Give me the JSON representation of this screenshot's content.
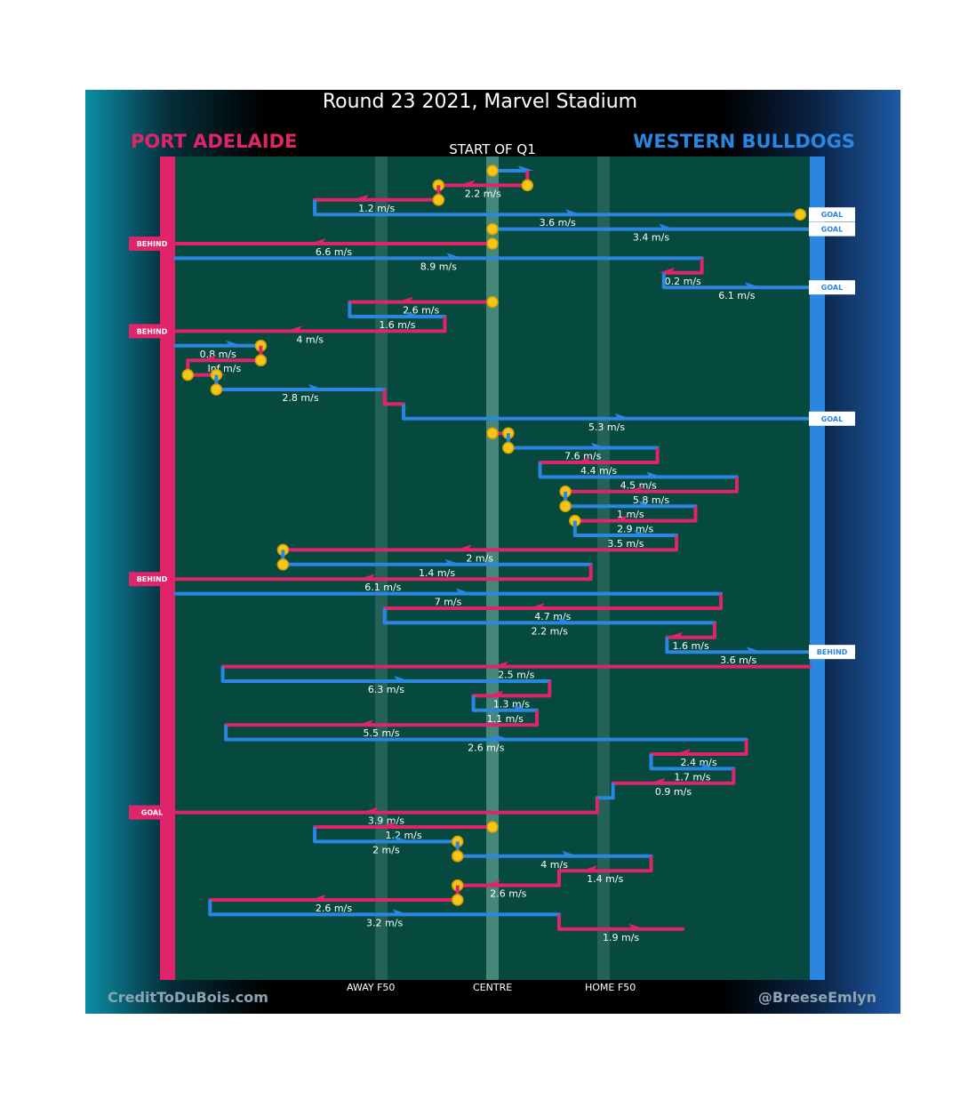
{
  "title": "Round 23 2021, Marvel Stadium",
  "subtitle": "START OF Q1",
  "teams": {
    "left": {
      "name": "PORT ADELAIDE",
      "color": "#e0246a"
    },
    "right": {
      "name": "WESTERN BULLDOGS",
      "color": "#2a86e0"
    }
  },
  "axis_labels": {
    "away": "AWAY F50",
    "centre": "CENTRE",
    "home": "HOME F50"
  },
  "credits": {
    "left": "CreditToDuBois.com",
    "right": "@BreeseEmlyn"
  },
  "colors": {
    "field": "#05493f",
    "port": "#e0246a",
    "bulldogs": "#2a86e0",
    "contest_marker": "#f5c518"
  },
  "chart_data": {
    "type": "diagram",
    "x_scale": "field position (0 = Port Adelaide goal line, 0.5 = centre, 1 = Western Bulldogs goal line)",
    "markers": {
      "away_f50": 0.325,
      "centre": 0.5,
      "home_f50": 0.675
    },
    "chains": [
      {
        "team": "WB",
        "speed": "",
        "from": 0.5,
        "to": 0.555,
        "contest_from": true,
        "contest_to": false
      },
      {
        "team": "PA",
        "speed": "2.2 m/s",
        "from": 0.555,
        "to": 0.415,
        "contest_from": true,
        "contest_to": true
      },
      {
        "team": "PA",
        "speed": "1.2 m/s",
        "from": 0.415,
        "to": 0.22,
        "contest_from": true,
        "contest_to": false
      },
      {
        "team": "WB",
        "speed": "3.6 m/s",
        "from": 0.22,
        "to": 0.985,
        "contest_from": false,
        "contest_to": true,
        "outcome": "GOAL"
      },
      {
        "team": "WB",
        "speed": "3.4 m/s",
        "from": 0.5,
        "to": 1.0,
        "contest_from": true,
        "contest_to": false,
        "outcome": "GOAL"
      },
      {
        "team": "PA",
        "speed": "6.6 m/s",
        "from": 0.5,
        "to": 0.0,
        "contest_from": true,
        "contest_to": false,
        "outcome": "BEHIND"
      },
      {
        "team": "WB",
        "speed": "8.9 m/s",
        "from": 0.0,
        "to": 0.83,
        "contest_from": false,
        "contest_to": false
      },
      {
        "team": "PA",
        "speed": "0.2 m/s",
        "from": 0.83,
        "to": 0.77,
        "contest_from": false,
        "contest_to": false
      },
      {
        "team": "WB",
        "speed": "6.1 m/s",
        "from": 0.77,
        "to": 1.0,
        "contest_from": false,
        "contest_to": false,
        "outcome": "GOAL"
      },
      {
        "team": "PA",
        "speed": "2.6 m/s",
        "from": 0.5,
        "to": 0.275,
        "contest_from": true,
        "contest_to": false
      },
      {
        "team": "WB",
        "speed": "1.6 m/s",
        "from": 0.275,
        "to": 0.425,
        "contest_from": false,
        "contest_to": false
      },
      {
        "team": "PA",
        "speed": "4 m/s",
        "from": 0.425,
        "to": 0.0,
        "contest_from": false,
        "contest_to": false,
        "outcome": "BEHIND"
      },
      {
        "team": "WB",
        "speed": "0.8 m/s",
        "from": 0.0,
        "to": 0.135,
        "contest_from": false,
        "contest_to": true
      },
      {
        "team": "PA",
        "speed": "Inf m/s",
        "from": 0.135,
        "to": 0.02,
        "contest_from": true,
        "contest_to": false
      },
      {
        "team": "PA",
        "speed": "",
        "from": 0.02,
        "to": 0.065,
        "contest_from": true,
        "contest_to": true
      },
      {
        "team": "WB",
        "speed": "2.8 m/s",
        "from": 0.065,
        "to": 0.33,
        "contest_from": true,
        "contest_to": false
      },
      {
        "team": "PA",
        "speed": "",
        "from": 0.33,
        "to": 0.36,
        "contest_from": false,
        "contest_to": false
      },
      {
        "team": "WB",
        "speed": "5.3 m/s",
        "from": 0.36,
        "to": 1.0,
        "contest_from": false,
        "contest_to": false,
        "outcome": "GOAL"
      },
      {
        "team": "PA",
        "speed": "",
        "from": 0.5,
        "to": 0.525,
        "contest_from": true,
        "contest_to": true
      },
      {
        "team": "WB",
        "speed": "7.6 m/s",
        "from": 0.525,
        "to": 0.76,
        "contest_from": true,
        "contest_to": false
      },
      {
        "team": "PA",
        "speed": "4.4 m/s",
        "from": 0.76,
        "to": 0.575,
        "contest_from": false,
        "contest_to": false
      },
      {
        "team": "WB",
        "speed": "4.5 m/s",
        "from": 0.575,
        "to": 0.885,
        "contest_from": false,
        "contest_to": false
      },
      {
        "team": "PA",
        "speed": "5.8 m/s",
        "from": 0.885,
        "to": 0.615,
        "contest_from": false,
        "contest_to": true
      },
      {
        "team": "WB",
        "speed": "1 m/s",
        "from": 0.615,
        "to": 0.82,
        "contest_from": true,
        "contest_to": false
      },
      {
        "team": "PA",
        "speed": "2.9 m/s",
        "from": 0.82,
        "to": 0.63,
        "contest_from": false,
        "contest_to": true
      },
      {
        "team": "WB",
        "speed": "3.5 m/s",
        "from": 0.63,
        "to": 0.79,
        "contest_from": false,
        "contest_to": false
      },
      {
        "team": "PA",
        "speed": "2 m/s",
        "from": 0.79,
        "to": 0.17,
        "contest_from": false,
        "contest_to": true
      },
      {
        "team": "WB",
        "speed": "1.4 m/s",
        "from": 0.17,
        "to": 0.655,
        "contest_from": true,
        "contest_to": false
      },
      {
        "team": "PA",
        "speed": "6.1 m/s",
        "from": 0.655,
        "to": 0.0,
        "contest_from": false,
        "contest_to": false,
        "outcome": "BEHIND"
      },
      {
        "team": "WB",
        "speed": "7 m/s",
        "from": 0.0,
        "to": 0.86,
        "contest_from": false,
        "contest_to": false
      },
      {
        "team": "PA",
        "speed": "4.7 m/s",
        "from": 0.86,
        "to": 0.33,
        "contest_from": false,
        "contest_to": false
      },
      {
        "team": "WB",
        "speed": "2.2 m/s",
        "from": 0.33,
        "to": 0.85,
        "contest_from": false,
        "contest_to": false
      },
      {
        "team": "PA",
        "speed": "1.6 m/s",
        "from": 0.85,
        "to": 0.775,
        "contest_from": false,
        "contest_to": false
      },
      {
        "team": "WB",
        "speed": "3.6 m/s",
        "from": 0.775,
        "to": 1.0,
        "contest_from": false,
        "contest_to": false,
        "outcome": "BEHIND"
      },
      {
        "team": "PA",
        "speed": "2.5 m/s",
        "from": 1.0,
        "to": 0.075,
        "contest_from": false,
        "contest_to": false
      },
      {
        "team": "WB",
        "speed": "6.3 m/s",
        "from": 0.075,
        "to": 0.59,
        "contest_from": false,
        "contest_to": false
      },
      {
        "team": "PA",
        "speed": "1.3 m/s",
        "from": 0.59,
        "to": 0.47,
        "contest_from": false,
        "contest_to": false
      },
      {
        "team": "WB",
        "speed": "1.1 m/s",
        "from": 0.47,
        "to": 0.57,
        "contest_from": false,
        "contest_to": false
      },
      {
        "team": "PA",
        "speed": "5.5 m/s",
        "from": 0.57,
        "to": 0.08,
        "contest_from": false,
        "contest_to": false
      },
      {
        "team": "WB",
        "speed": "2.6 m/s",
        "from": 0.08,
        "to": 0.9,
        "contest_from": false,
        "contest_to": false
      },
      {
        "team": "PA",
        "speed": "2.4 m/s",
        "from": 0.9,
        "to": 0.75,
        "contest_from": false,
        "contest_to": false
      },
      {
        "team": "WB",
        "speed": "1.7 m/s",
        "from": 0.75,
        "to": 0.88,
        "contest_from": false,
        "contest_to": false
      },
      {
        "team": "PA",
        "speed": "0.9 m/s",
        "from": 0.88,
        "to": 0.69,
        "contest_from": false,
        "contest_to": false
      },
      {
        "team": "WB",
        "speed": "",
        "from": 0.69,
        "to": 0.665,
        "contest_from": false,
        "contest_to": false
      },
      {
        "team": "PA",
        "speed": "3.9 m/s",
        "from": 0.665,
        "to": 0.0,
        "contest_from": false,
        "contest_to": false,
        "outcome": "GOAL"
      },
      {
        "team": "PA",
        "speed": "1.2 m/s",
        "from": 0.5,
        "to": 0.22,
        "contest_from": true,
        "contest_to": false
      },
      {
        "team": "WB",
        "speed": "2 m/s",
        "from": 0.22,
        "to": 0.445,
        "contest_from": false,
        "contest_to": true
      },
      {
        "team": "WB",
        "speed": "4 m/s",
        "from": 0.445,
        "to": 0.75,
        "contest_from": true,
        "contest_to": false
      },
      {
        "team": "PA",
        "speed": "1.4 m/s",
        "from": 0.75,
        "to": 0.605,
        "contest_from": false,
        "contest_to": false
      },
      {
        "team": "PA",
        "speed": "2.6 m/s",
        "from": 0.605,
        "to": 0.445,
        "contest_from": false,
        "contest_to": true
      },
      {
        "team": "PA",
        "speed": "2.6 m/s",
        "from": 0.445,
        "to": 0.055,
        "contest_from": true,
        "contest_to": false
      },
      {
        "team": "WB",
        "speed": "3.2 m/s",
        "from": 0.055,
        "to": 0.605,
        "contest_from": false,
        "contest_to": false
      },
      {
        "team": "PA",
        "speed": "1.9 m/s",
        "from": 0.605,
        "to": 0.8,
        "contest_from": false,
        "contest_to": false
      }
    ]
  }
}
